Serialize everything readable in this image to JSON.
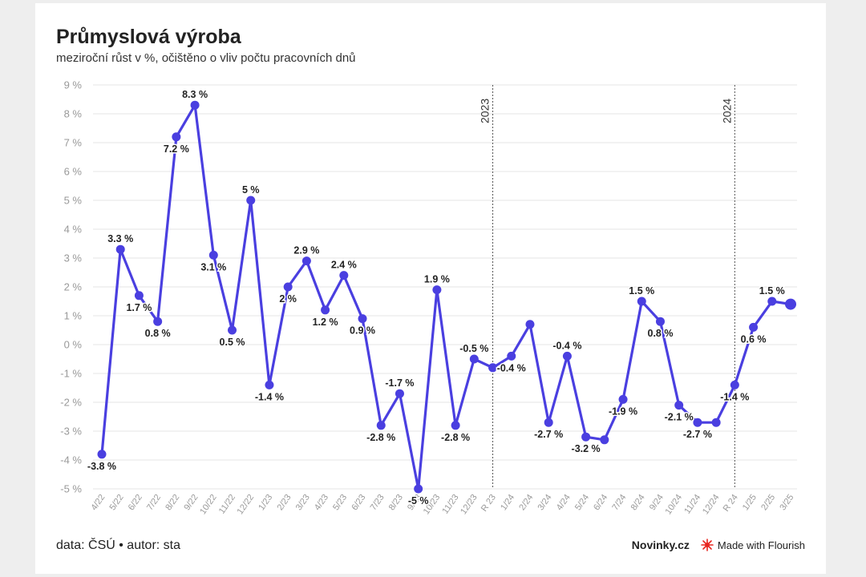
{
  "header": {
    "title": "Průmyslová výroba",
    "subtitle": "meziroční růst v %, očištěno o vliv počtu pracovních dnů"
  },
  "footer": {
    "source": "data: ČSÚ • autor: sta",
    "brand": "Novinky.cz",
    "flourish": "Made with Flourish"
  },
  "colors": {
    "line": "#4a3fe0",
    "grid": "#e6e6e6",
    "divider": "#555555"
  },
  "chart_data": {
    "type": "line",
    "title": "Průmyslová výroba",
    "subtitle": "meziroční růst v %, očištěno o vliv počtu pracovních dnů",
    "categories": [
      "4/22",
      "5/22",
      "6/22",
      "7/22",
      "8/22",
      "9/22",
      "10/22",
      "11/22",
      "12/22",
      "1/23",
      "2/23",
      "3/23",
      "4/23",
      "5/23",
      "6/23",
      "7/23",
      "8/23",
      "9/23",
      "10/23",
      "11/23",
      "12/23",
      "R 23",
      "1/24",
      "2/24",
      "3/24",
      "4/24",
      "5/24",
      "6/24",
      "7/24",
      "8/24",
      "9/24",
      "10/24",
      "11/24",
      "12/24",
      "R 24",
      "1/25",
      "2/25",
      "3/25"
    ],
    "values": [
      -3.8,
      3.3,
      1.7,
      0.8,
      7.2,
      8.3,
      3.1,
      0.5,
      5.0,
      -1.4,
      2.0,
      2.9,
      1.2,
      2.4,
      0.9,
      -2.8,
      -1.7,
      -5.0,
      1.9,
      -2.8,
      -0.5,
      -0.8,
      -0.4,
      0.7,
      -2.7,
      -0.4,
      -3.2,
      -3.3,
      -1.9,
      1.5,
      0.8,
      -2.1,
      -2.7,
      -2.7,
      -1.4,
      0.6,
      1.5,
      1.4
    ],
    "labels": [
      {
        "i": 0,
        "text": "-3.8 %"
      },
      {
        "i": 1,
        "text": "3.3 %"
      },
      {
        "i": 2,
        "text": "1.7 %"
      },
      {
        "i": 3,
        "text": "0.8 %"
      },
      {
        "i": 4,
        "text": "7.2 %"
      },
      {
        "i": 5,
        "text": "8.3 %"
      },
      {
        "i": 6,
        "text": "3.1 %"
      },
      {
        "i": 7,
        "text": "0.5 %"
      },
      {
        "i": 8,
        "text": "5 %"
      },
      {
        "i": 9,
        "text": "-1.4 %"
      },
      {
        "i": 10,
        "text": "2 %"
      },
      {
        "i": 11,
        "text": "2.9 %"
      },
      {
        "i": 12,
        "text": "1.2 %"
      },
      {
        "i": 13,
        "text": "2.4 %"
      },
      {
        "i": 14,
        "text": "0.9 %"
      },
      {
        "i": 15,
        "text": "-2.8 %"
      },
      {
        "i": 16,
        "text": "-1.7 %"
      },
      {
        "i": 17,
        "text": "-5 %"
      },
      {
        "i": 18,
        "text": "1.9 %"
      },
      {
        "i": 19,
        "text": "-2.8 %"
      },
      {
        "i": 20,
        "text": "-0.5 %"
      },
      {
        "i": 22,
        "text": "-0.4 %"
      },
      {
        "i": 24,
        "text": "-2.7 %"
      },
      {
        "i": 25,
        "text": "-0.4 %"
      },
      {
        "i": 26,
        "text": "-3.2 %"
      },
      {
        "i": 28,
        "text": "-1.9 %"
      },
      {
        "i": 29,
        "text": "1.5 %"
      },
      {
        "i": 30,
        "text": "0.8 %"
      },
      {
        "i": 31,
        "text": "-2.1 %"
      },
      {
        "i": 32,
        "text": "-2.7 %"
      },
      {
        "i": 34,
        "text": "-1.4 %"
      },
      {
        "i": 35,
        "text": "0.6 %"
      },
      {
        "i": 36,
        "text": "1.5 %"
      }
    ],
    "yticks": [
      9,
      8,
      7,
      6,
      5,
      4,
      3,
      2,
      1,
      0,
      -1,
      -2,
      -3,
      -4,
      -5
    ],
    "ytick_labels": [
      "9 %",
      "8 %",
      "7 %",
      "6 %",
      "5 %",
      "4 %",
      "3 %",
      "2 %",
      "1 %",
      "0 %",
      "-1 %",
      "-2 %",
      "-3 %",
      "-4 %",
      "-5 %"
    ],
    "ylim": [
      -5,
      9
    ],
    "grid": true,
    "annotations": [
      {
        "at_index": 21,
        "text": "2023"
      },
      {
        "at_index": 34,
        "text": "2024"
      }
    ]
  }
}
